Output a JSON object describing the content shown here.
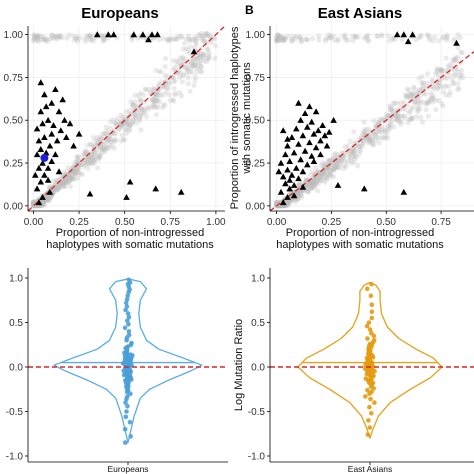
{
  "chart_data": [
    {
      "type": "scatter",
      "panel_label": "",
      "title": "Europeans",
      "xlabel": "Proportion of non-introgressed\nhaplotypes with somatic mutations",
      "ylabel": "",
      "xlim": [
        -0.03,
        1.05
      ],
      "ylim": [
        -0.03,
        1.05
      ],
      "xticks": [
        "0.00",
        "0.25",
        "0.50",
        "0.75",
        "1.00"
      ],
      "yticks": [
        "0.00",
        "0.25",
        "0.50",
        "0.75",
        "1.00"
      ],
      "grid": true,
      "reference_line": "y = x",
      "colors": {
        "background_points": "#bdbdbd",
        "triangles": "#000000",
        "highlight": "#1f1fd6",
        "reference": "#d62728"
      },
      "highlight_point": {
        "x": 0.06,
        "y": 0.28
      },
      "triangles": [
        {
          "x": 0.03,
          "y": 0.02
        },
        {
          "x": 0.05,
          "y": 0.05
        },
        {
          "x": 0.02,
          "y": 0.1
        },
        {
          "x": 0.04,
          "y": 0.14
        },
        {
          "x": 0.06,
          "y": 0.18
        },
        {
          "x": 0.03,
          "y": 0.22
        },
        {
          "x": 0.05,
          "y": 0.25
        },
        {
          "x": 0.08,
          "y": 0.22
        },
        {
          "x": 0.1,
          "y": 0.26
        },
        {
          "x": 0.02,
          "y": 0.3
        },
        {
          "x": 0.04,
          "y": 0.33
        },
        {
          "x": 0.07,
          "y": 0.31
        },
        {
          "x": 0.09,
          "y": 0.35
        },
        {
          "x": 0.12,
          "y": 0.3
        },
        {
          "x": 0.03,
          "y": 0.38
        },
        {
          "x": 0.06,
          "y": 0.4
        },
        {
          "x": 0.1,
          "y": 0.42
        },
        {
          "x": 0.13,
          "y": 0.38
        },
        {
          "x": 0.02,
          "y": 0.45
        },
        {
          "x": 0.05,
          "y": 0.48
        },
        {
          "x": 0.08,
          "y": 0.5
        },
        {
          "x": 0.11,
          "y": 0.47
        },
        {
          "x": 0.15,
          "y": 0.44
        },
        {
          "x": 0.04,
          "y": 0.55
        },
        {
          "x": 0.07,
          "y": 0.58
        },
        {
          "x": 0.1,
          "y": 0.6
        },
        {
          "x": 0.14,
          "y": 0.55
        },
        {
          "x": 0.17,
          "y": 0.5
        },
        {
          "x": 0.06,
          "y": 0.65
        },
        {
          "x": 0.12,
          "y": 0.68
        },
        {
          "x": 0.16,
          "y": 0.62
        },
        {
          "x": 0.2,
          "y": 0.48
        },
        {
          "x": 0.18,
          "y": 0.4
        },
        {
          "x": 0.22,
          "y": 0.35
        },
        {
          "x": 0.14,
          "y": 0.2
        },
        {
          "x": 0.08,
          "y": 0.15
        },
        {
          "x": 0.04,
          "y": 0.72
        },
        {
          "x": 0.25,
          "y": 0.42
        },
        {
          "x": 0.09,
          "y": 0.08
        },
        {
          "x": 0.01,
          "y": 0.18
        },
        {
          "x": 0.35,
          "y": 1.0
        },
        {
          "x": 0.41,
          "y": 1.0
        },
        {
          "x": 0.44,
          "y": 1.0
        },
        {
          "x": 0.55,
          "y": 1.0
        },
        {
          "x": 0.6,
          "y": 1.0
        },
        {
          "x": 0.65,
          "y": 1.0
        },
        {
          "x": 0.68,
          "y": 1.0
        },
        {
          "x": 0.63,
          "y": 0.97
        },
        {
          "x": 0.88,
          "y": 0.9
        },
        {
          "x": 0.53,
          "y": 0.14
        },
        {
          "x": 0.67,
          "y": 0.1
        },
        {
          "x": 0.51,
          "y": 0.05
        },
        {
          "x": 0.81,
          "y": 0.08
        },
        {
          "x": 0.31,
          "y": 0.07
        }
      ]
    },
    {
      "type": "scatter",
      "panel_label": "B",
      "title": "East Asians",
      "xlabel": "Proportion of non-introgressed\nhaplotypes with somatic mutations",
      "ylabel": "Proportion of introgressed haplotypes\nwith somatic mutations",
      "xlim": [
        -0.03,
        0.9
      ],
      "ylim": [
        -0.03,
        1.05
      ],
      "xticks": [
        "0.00",
        "0.25",
        "0.50",
        "0.75"
      ],
      "yticks": [
        "0.00",
        "0.25",
        "0.50",
        "0.75",
        "1.00"
      ],
      "grid": true,
      "reference_line": "y = x",
      "colors": {
        "background_points": "#bdbdbd",
        "triangles": "#000000",
        "reference": "#d62728"
      },
      "triangles": [
        {
          "x": 0.03,
          "y": 0.02
        },
        {
          "x": 0.05,
          "y": 0.05
        },
        {
          "x": 0.02,
          "y": 0.08
        },
        {
          "x": 0.06,
          "y": 0.1
        },
        {
          "x": 0.04,
          "y": 0.13
        },
        {
          "x": 0.08,
          "y": 0.12
        },
        {
          "x": 0.03,
          "y": 0.17
        },
        {
          "x": 0.07,
          "y": 0.18
        },
        {
          "x": 0.1,
          "y": 0.16
        },
        {
          "x": 0.05,
          "y": 0.21
        },
        {
          "x": 0.09,
          "y": 0.22
        },
        {
          "x": 0.12,
          "y": 0.2
        },
        {
          "x": 0.02,
          "y": 0.25
        },
        {
          "x": 0.06,
          "y": 0.26
        },
        {
          "x": 0.11,
          "y": 0.27
        },
        {
          "x": 0.14,
          "y": 0.24
        },
        {
          "x": 0.04,
          "y": 0.3
        },
        {
          "x": 0.08,
          "y": 0.31
        },
        {
          "x": 0.13,
          "y": 0.32
        },
        {
          "x": 0.16,
          "y": 0.29
        },
        {
          "x": 0.05,
          "y": 0.35
        },
        {
          "x": 0.1,
          "y": 0.36
        },
        {
          "x": 0.15,
          "y": 0.37
        },
        {
          "x": 0.18,
          "y": 0.34
        },
        {
          "x": 0.07,
          "y": 0.4
        },
        {
          "x": 0.12,
          "y": 0.41
        },
        {
          "x": 0.17,
          "y": 0.42
        },
        {
          "x": 0.2,
          "y": 0.38
        },
        {
          "x": 0.09,
          "y": 0.45
        },
        {
          "x": 0.14,
          "y": 0.46
        },
        {
          "x": 0.19,
          "y": 0.44
        },
        {
          "x": 0.22,
          "y": 0.41
        },
        {
          "x": 0.11,
          "y": 0.5
        },
        {
          "x": 0.16,
          "y": 0.49
        },
        {
          "x": 0.21,
          "y": 0.47
        },
        {
          "x": 0.24,
          "y": 0.43
        },
        {
          "x": 0.13,
          "y": 0.54
        },
        {
          "x": 0.18,
          "y": 0.55
        },
        {
          "x": 0.1,
          "y": 0.6
        },
        {
          "x": 0.15,
          "y": 0.58
        },
        {
          "x": 0.06,
          "y": 0.15
        },
        {
          "x": 0.03,
          "y": 0.44
        },
        {
          "x": 0.2,
          "y": 0.3
        },
        {
          "x": 0.23,
          "y": 0.35
        },
        {
          "x": 0.08,
          "y": 0.06
        },
        {
          "x": 0.12,
          "y": 0.11
        },
        {
          "x": 0.05,
          "y": 0.39
        },
        {
          "x": 0.17,
          "y": 0.26
        },
        {
          "x": 0.26,
          "y": 0.5
        },
        {
          "x": 0.01,
          "y": 0.2
        },
        {
          "x": 0.55,
          "y": 1.0
        },
        {
          "x": 0.58,
          "y": 1.0
        },
        {
          "x": 0.62,
          "y": 1.0
        },
        {
          "x": 0.6,
          "y": 0.96
        },
        {
          "x": 0.82,
          "y": 0.95
        },
        {
          "x": 0.28,
          "y": 0.12
        },
        {
          "x": 0.4,
          "y": 0.1
        },
        {
          "x": 0.58,
          "y": 0.08
        }
      ]
    },
    {
      "type": "violin",
      "panel_label": "",
      "category": "Europeans",
      "ylabel": "",
      "ylim": [
        -1.0,
        1.0
      ],
      "yticks": [
        "-1.0",
        "-0.5",
        "0.0",
        "0.5",
        "1.0"
      ],
      "reference_line": 0.0,
      "median": 0.05,
      "colors": {
        "outline": "#5aaee3",
        "points": "#4a9fd8",
        "reference": "#d62728"
      },
      "density_profile": [
        {
          "y": -0.85,
          "w": 0.0
        },
        {
          "y": -0.7,
          "w": 0.01
        },
        {
          "y": -0.55,
          "w": 0.02
        },
        {
          "y": -0.45,
          "w": 0.03
        },
        {
          "y": -0.35,
          "w": 0.04
        },
        {
          "y": -0.25,
          "w": 0.07
        },
        {
          "y": -0.15,
          "w": 0.13
        },
        {
          "y": -0.05,
          "w": 0.2
        },
        {
          "y": 0.02,
          "w": 0.24
        },
        {
          "y": 0.1,
          "w": 0.18
        },
        {
          "y": 0.2,
          "w": 0.1
        },
        {
          "y": 0.3,
          "w": 0.06
        },
        {
          "y": 0.45,
          "w": 0.04
        },
        {
          "y": 0.6,
          "w": 0.035
        },
        {
          "y": 0.75,
          "w": 0.04
        },
        {
          "y": 0.88,
          "w": 0.06
        },
        {
          "y": 0.96,
          "w": 0.04
        },
        {
          "y": 0.99,
          "w": 0.0
        }
      ],
      "points": [
        0.98,
        0.95,
        0.93,
        0.9,
        0.87,
        0.84,
        0.8,
        0.76,
        0.72,
        0.68,
        0.64,
        0.6,
        0.56,
        0.52,
        0.48,
        0.44,
        0.4,
        0.36,
        0.33,
        0.3,
        0.27,
        0.25,
        0.23,
        0.21,
        0.19,
        0.17,
        0.16,
        0.15,
        0.14,
        0.13,
        0.12,
        0.11,
        0.1,
        0.09,
        0.08,
        0.08,
        0.07,
        0.07,
        0.06,
        0.06,
        0.05,
        0.05,
        0.04,
        0.04,
        0.03,
        0.03,
        0.02,
        0.02,
        0.01,
        0.01,
        0.0,
        0.0,
        -0.01,
        -0.01,
        -0.02,
        -0.02,
        -0.03,
        -0.03,
        -0.04,
        -0.04,
        -0.05,
        -0.05,
        -0.06,
        -0.06,
        -0.07,
        -0.08,
        -0.09,
        -0.1,
        -0.11,
        -0.12,
        -0.13,
        -0.14,
        -0.15,
        -0.16,
        -0.17,
        -0.18,
        -0.2,
        -0.22,
        -0.24,
        -0.26,
        -0.28,
        -0.3,
        -0.33,
        -0.36,
        -0.4,
        -0.44,
        -0.5,
        -0.56,
        -0.62,
        -0.7,
        -0.78,
        -0.85,
        0.02,
        0.0,
        -0.02,
        0.04,
        -0.04,
        0.06,
        -0.06,
        0.08,
        -0.08,
        0.1,
        -0.1,
        0.12,
        -0.12,
        0.03,
        -0.03,
        0.01,
        -0.01,
        0.05,
        -0.05,
        0.07,
        -0.07,
        0.09,
        -0.09,
        0.14,
        -0.14,
        0.18,
        -0.18,
        0.22,
        -0.22,
        0.0,
        0.02,
        -0.02,
        0.04,
        -0.04,
        0.03,
        -0.03,
        0.01,
        -0.01,
        0.06,
        -0.06
      ]
    },
    {
      "type": "violin",
      "panel_label": "",
      "category": "East Asians",
      "ylabel": "Log Mutation Ratio",
      "ylim": [
        -1.0,
        1.0
      ],
      "yticks": [
        "-1.0",
        "-0.5",
        "0.0",
        "0.5",
        "1.0"
      ],
      "reference_line": 0.0,
      "median": 0.05,
      "colors": {
        "outline": "#e3a21a",
        "points": "#e39b12",
        "reference": "#d62728"
      },
      "density_profile": [
        {
          "y": -0.8,
          "w": 0.0
        },
        {
          "y": -0.7,
          "w": 0.01
        },
        {
          "y": -0.55,
          "w": 0.03
        },
        {
          "y": -0.4,
          "w": 0.07
        },
        {
          "y": -0.25,
          "w": 0.14
        },
        {
          "y": -0.12,
          "w": 0.21
        },
        {
          "y": 0.0,
          "w": 0.25
        },
        {
          "y": 0.1,
          "w": 0.22
        },
        {
          "y": 0.2,
          "w": 0.16
        },
        {
          "y": 0.32,
          "w": 0.1
        },
        {
          "y": 0.45,
          "w": 0.06
        },
        {
          "y": 0.6,
          "w": 0.04
        },
        {
          "y": 0.75,
          "w": 0.035
        },
        {
          "y": 0.85,
          "w": 0.035
        },
        {
          "y": 0.92,
          "w": 0.02
        },
        {
          "y": 0.95,
          "w": 0.0
        }
      ],
      "points": [
        0.93,
        0.88,
        0.8,
        0.7,
        0.62,
        0.55,
        0.5,
        0.46,
        0.42,
        0.38,
        0.35,
        0.32,
        0.3,
        0.28,
        0.26,
        0.24,
        0.22,
        0.2,
        0.19,
        0.18,
        0.17,
        0.16,
        0.15,
        0.14,
        0.13,
        0.12,
        0.11,
        0.1,
        0.09,
        0.08,
        0.07,
        0.06,
        0.05,
        0.05,
        0.04,
        0.04,
        0.03,
        0.03,
        0.02,
        0.02,
        0.01,
        0.01,
        0.0,
        0.0,
        -0.01,
        -0.01,
        -0.02,
        -0.02,
        -0.03,
        -0.03,
        -0.04,
        -0.04,
        -0.05,
        -0.06,
        -0.07,
        -0.08,
        -0.09,
        -0.1,
        -0.11,
        -0.12,
        -0.13,
        -0.14,
        -0.15,
        -0.16,
        -0.17,
        -0.18,
        -0.2,
        -0.22,
        -0.24,
        -0.26,
        -0.28,
        -0.3,
        -0.33,
        -0.36,
        -0.4,
        -0.45,
        -0.52,
        -0.6,
        -0.68,
        -0.76,
        0.08,
        -0.08,
        0.12,
        -0.12,
        0.15,
        -0.15,
        0.06,
        -0.06,
        0.1,
        -0.1,
        0.18,
        -0.18,
        0.21,
        0.25,
        0.03,
        -0.03,
        0.0,
        0.01,
        -0.01,
        0.05
      ]
    }
  ]
}
